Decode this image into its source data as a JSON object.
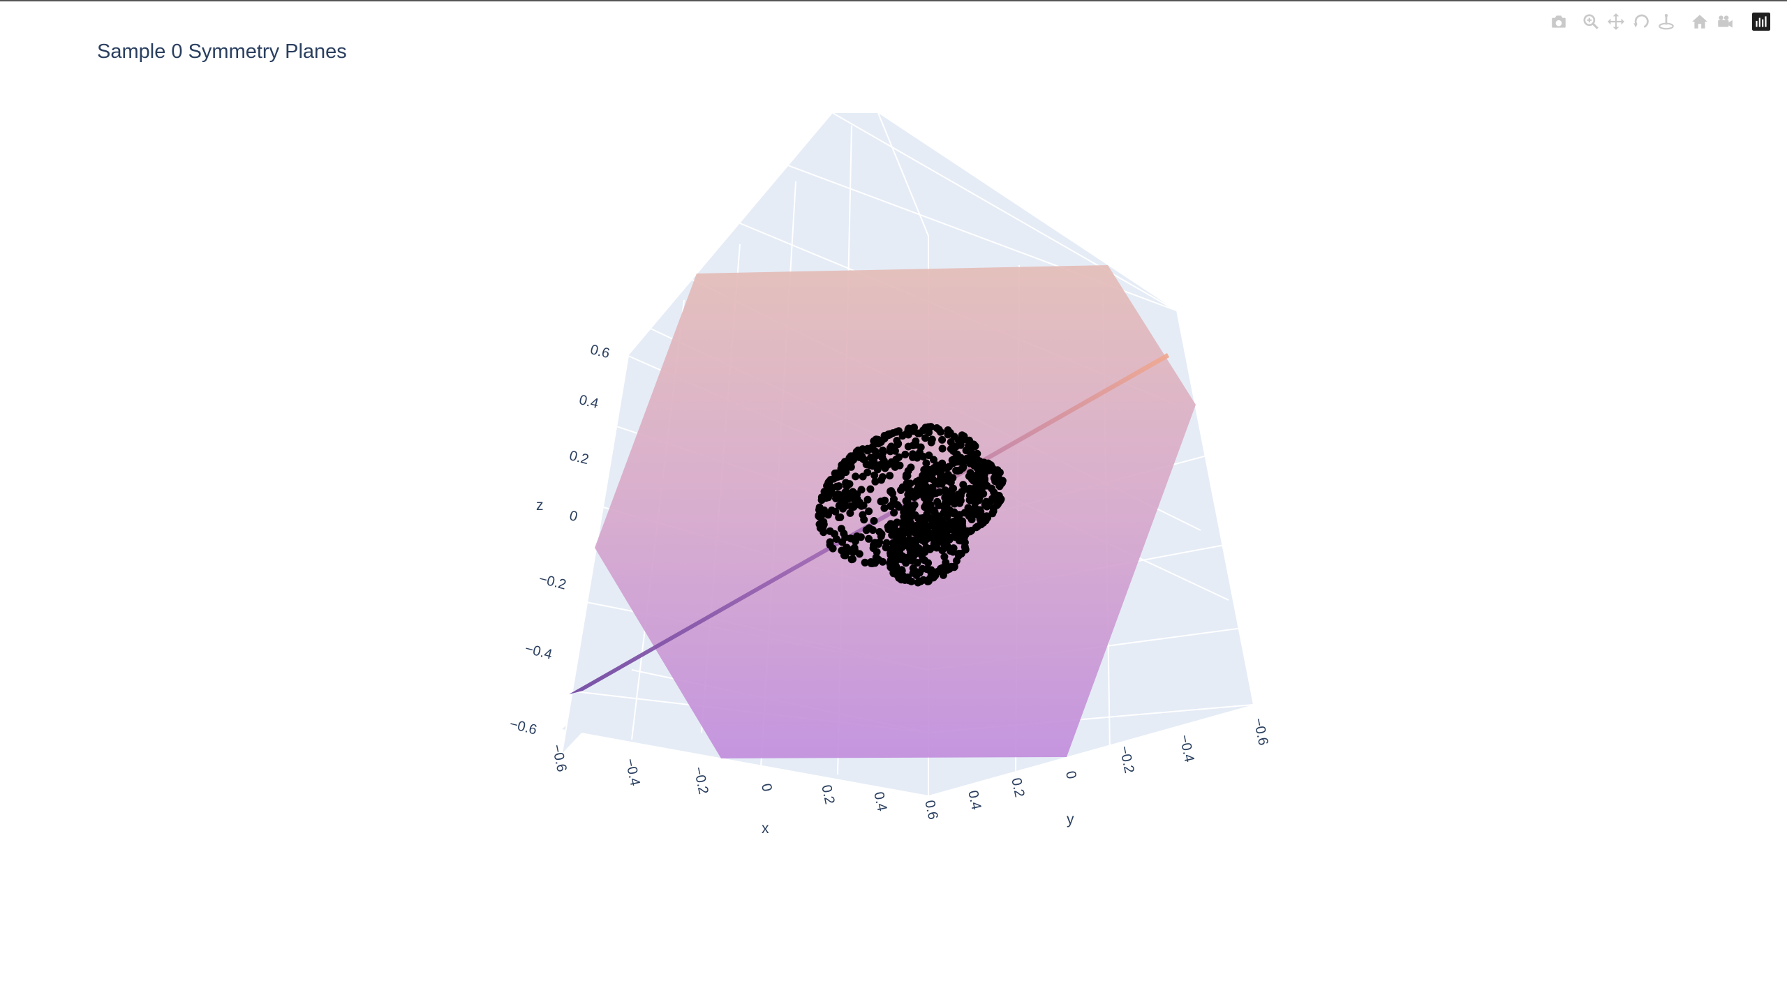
{
  "title": "Sample 0 Symmetry Planes",
  "modebar": [
    {
      "name": "camera-icon"
    },
    {
      "name": "zoom-icon"
    },
    {
      "name": "pan-icon"
    },
    {
      "name": "orbit-rotation-icon"
    },
    {
      "name": "turntable-rotation-icon"
    },
    {
      "name": "home-icon"
    },
    {
      "name": "video-camera-icon"
    },
    {
      "name": "plotly-logo-icon"
    }
  ],
  "chart_data": {
    "type": "scatter3d",
    "title": "Sample 0 Symmetry Planes",
    "axes": {
      "x": {
        "title": "x",
        "range": [
          -0.6,
          0.6
        ],
        "ticks": [
          "−0.6",
          "−0.4",
          "−0.2",
          "0",
          "0.2",
          "0.4",
          "0.6"
        ]
      },
      "y": {
        "title": "y",
        "range": [
          -0.6,
          0.6
        ],
        "ticks": [
          "0.4",
          "0.2",
          "0",
          "−0.2",
          "−0.4",
          "−0.6"
        ]
      },
      "z": {
        "title": "z",
        "range": [
          -0.6,
          0.6
        ],
        "ticks": [
          "0.6",
          "0.4",
          "0.2",
          "0",
          "−0.2",
          "−0.4",
          "−0.6"
        ]
      }
    },
    "point_cloud": {
      "marker_color": "#000000",
      "shape": "three overlapping spherical shells",
      "spheres": [
        {
          "center": [
            0.05,
            0.05,
            0.08
          ],
          "radius": 0.3
        },
        {
          "center": [
            -0.12,
            0.15,
            0.02
          ],
          "radius": 0.18
        },
        {
          "center": [
            -0.06,
            0.08,
            -0.2
          ],
          "radius": 0.14
        }
      ]
    },
    "planes": [
      {
        "name": "plane-1",
        "colorscale": [
          "#c58fdc",
          "#e4bdb8"
        ],
        "opacity": 0.85
      },
      {
        "name": "plane-2",
        "colorscale": [
          "#7f4fa6",
          "#f0a890"
        ],
        "opacity": 0.9
      }
    ],
    "background": "#e5ecf6",
    "grid": true
  }
}
